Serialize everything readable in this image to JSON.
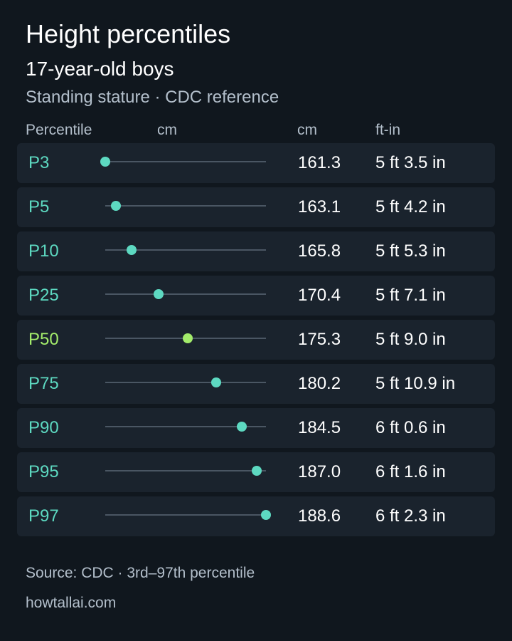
{
  "header": {
    "title": "Height percentiles",
    "subtitle": "17-year-old boys",
    "note": "Standing stature · CDC reference"
  },
  "columns": {
    "percentile": "Percentile",
    "bar": "cm",
    "cm": "cm",
    "ftin": "ft-in"
  },
  "chart_data": {
    "type": "scatter",
    "title": "Height percentiles",
    "subtitle": "17-year-old boys",
    "xlabel": "cm",
    "xlim": [
      161.3,
      188.6
    ],
    "grid": false,
    "categories": [
      "P3",
      "P5",
      "P10",
      "P25",
      "P50",
      "P75",
      "P90",
      "P95",
      "P97"
    ],
    "values": [
      161.3,
      163.1,
      165.8,
      170.4,
      175.3,
      180.2,
      184.5,
      187.0,
      188.6
    ],
    "ftin": [
      "5 ft 3.5 in",
      "5 ft 4.2 in",
      "5 ft 5.3 in",
      "5 ft 7.1 in",
      "5 ft 9.0 in",
      "5 ft 10.9 in",
      "6 ft 0.6 in",
      "6 ft 1.6 in",
      "6 ft 2.3 in"
    ],
    "highlight": "P50"
  },
  "rows": [
    {
      "label": "P3",
      "cm": "161.3",
      "ftin": "5 ft 3.5 in"
    },
    {
      "label": "P5",
      "cm": "163.1",
      "ftin": "5 ft 4.2 in"
    },
    {
      "label": "P10",
      "cm": "165.8",
      "ftin": "5 ft 5.3 in"
    },
    {
      "label": "P25",
      "cm": "170.4",
      "ftin": "5 ft 7.1 in"
    },
    {
      "label": "P50",
      "cm": "175.3",
      "ftin": "5 ft 9.0 in"
    },
    {
      "label": "P75",
      "cm": "180.2",
      "ftin": "5 ft 10.9 in"
    },
    {
      "label": "P90",
      "cm": "184.5",
      "ftin": "6 ft 0.6 in"
    },
    {
      "label": "P95",
      "cm": "187.0",
      "ftin": "6 ft 1.6 in"
    },
    {
      "label": "P97",
      "cm": "188.6",
      "ftin": "6 ft 2.3 in"
    }
  ],
  "colors": {
    "background": "#10171e",
    "row": "#1a232d",
    "accent": "#5dd9c1",
    "median": "#a3ec6b",
    "track": "#4a5663",
    "muted": "#b3bfcb"
  },
  "footer": {
    "source": "Source: CDC · 3rd–97th percentile",
    "site": "howtallai.com"
  }
}
